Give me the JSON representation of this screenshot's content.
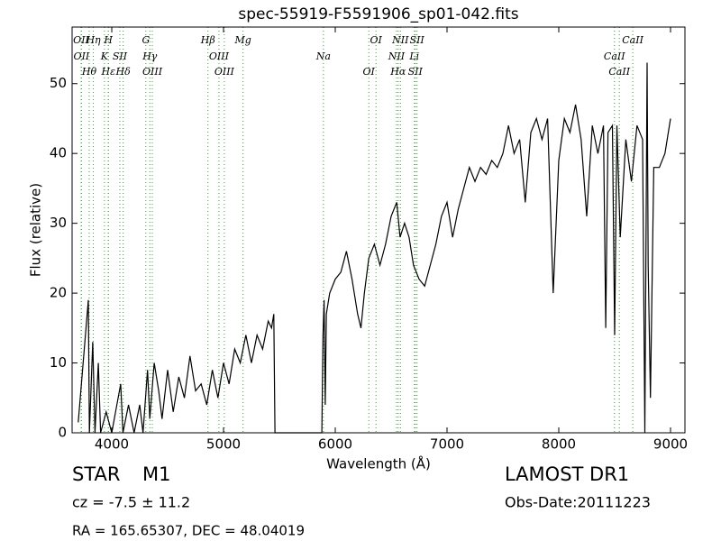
{
  "chart_data": {
    "type": "line",
    "title": "spec-55919-F5591906_sp01-042.fits",
    "x_label": "Wavelength (Å)",
    "y_label": "Flux (relative)",
    "color": "#000000",
    "line_color": "#3a9a3a",
    "xlim": [
      3645,
      9129
    ],
    "ylim": [
      0,
      58.1
    ],
    "xticks": [
      4000,
      5000,
      6000,
      7000,
      8000,
      9000
    ],
    "yticks": [
      0,
      10,
      20,
      30,
      40,
      50
    ],
    "x": [
      3700,
      3790,
      3800,
      3830,
      3850,
      3880,
      3900,
      3950,
      4000,
      4080,
      4100,
      4150,
      4200,
      4250,
      4280,
      4320,
      4340,
      4380,
      4420,
      4450,
      4500,
      4550,
      4600,
      4650,
      4700,
      4750,
      4800,
      4850,
      4900,
      4950,
      5000,
      5050,
      5100,
      5150,
      5200,
      5250,
      5300,
      5350,
      5400,
      5430,
      5450,
      5460,
      5800,
      5880,
      5890,
      5900,
      5910,
      5920,
      5950,
      6000,
      6050,
      6100,
      6150,
      6200,
      6230,
      6260,
      6300,
      6350,
      6400,
      6450,
      6500,
      6550,
      6580,
      6620,
      6660,
      6700,
      6750,
      6800,
      6850,
      6900,
      6950,
      7000,
      7050,
      7100,
      7150,
      7200,
      7250,
      7300,
      7350,
      7400,
      7450,
      7500,
      7550,
      7600,
      7650,
      7700,
      7750,
      7800,
      7850,
      7900,
      7950,
      8000,
      8050,
      8100,
      8150,
      8200,
      8250,
      8300,
      8350,
      8400,
      8420,
      8440,
      8480,
      8500,
      8520,
      8550,
      8600,
      8650,
      8700,
      8750,
      8770,
      8790,
      8800,
      8820,
      8850,
      8900,
      8950,
      9000
    ],
    "values": [
      1.5,
      19,
      0,
      13,
      0,
      10,
      0,
      3,
      0,
      7,
      0,
      4,
      0,
      4,
      0,
      9,
      2,
      10,
      6,
      2,
      9,
      3,
      8,
      5,
      11,
      6,
      7,
      4,
      9,
      5,
      10,
      7,
      12,
      10,
      14,
      10,
      14,
      12,
      16,
      15,
      17,
      0,
      0,
      0,
      14,
      19,
      4,
      17,
      20,
      22,
      23,
      26,
      22,
      17,
      15,
      20,
      25,
      27,
      24,
      27,
      31,
      33,
      28,
      30,
      28,
      24,
      22,
      21,
      24,
      27,
      31,
      33,
      28,
      32,
      35,
      38,
      36,
      38,
      37,
      39,
      38,
      40,
      44,
      40,
      42,
      33,
      43,
      45,
      42,
      45,
      20,
      39,
      45,
      43,
      47,
      42,
      31,
      44,
      40,
      44,
      15,
      43,
      44,
      14,
      44,
      28,
      42,
      36,
      44,
      42,
      0,
      53,
      24,
      5,
      38,
      38,
      40,
      45
    ],
    "lines": [
      {
        "label": "OII",
        "wavelength": 3726
      },
      {
        "label": "OII",
        "wavelength": 3729
      },
      {
        "label": "Hθ",
        "wavelength": 3798
      },
      {
        "label": "Hη",
        "wavelength": 3835
      },
      {
        "label": "K",
        "wavelength": 3934
      },
      {
        "label": "Hε",
        "wavelength": 3970
      },
      {
        "label": "H",
        "wavelength": 3969
      },
      {
        "label": "SII",
        "wavelength": 4072
      },
      {
        "label": "Hδ",
        "wavelength": 4102
      },
      {
        "label": "G",
        "wavelength": 4305
      },
      {
        "label": "Hγ",
        "wavelength": 4341
      },
      {
        "label": "OIII",
        "wavelength": 4363
      },
      {
        "label": "Hβ",
        "wavelength": 4861
      },
      {
        "label": "OIII",
        "wavelength": 4959
      },
      {
        "label": "OIII",
        "wavelength": 5007
      },
      {
        "label": "Mg",
        "wavelength": 5175
      },
      {
        "label": "Na",
        "wavelength": 5894
      },
      {
        "label": "OI",
        "wavelength": 6300
      },
      {
        "label": "OI",
        "wavelength": 6364
      },
      {
        "label": "NII",
        "wavelength": 6548
      },
      {
        "label": "Hα",
        "wavelength": 6563
      },
      {
        "label": "NII",
        "wavelength": 6583
      },
      {
        "label": "Li",
        "wavelength": 6708
      },
      {
        "label": "SII",
        "wavelength": 6716
      },
      {
        "label": "SII",
        "wavelength": 6731
      },
      {
        "label": "CaII",
        "wavelength": 8498
      },
      {
        "label": "CaII",
        "wavelength": 8542
      },
      {
        "label": "CaII",
        "wavelength": 8662
      }
    ],
    "class": "STAR",
    "subclass": "M1",
    "redshift": "cz = -7.5 ± 11.2",
    "survey": "LAMOST DR1",
    "obs_date": "Obs-Date:20111223",
    "coords": "RA = 165.65307, DEC = 48.04019"
  }
}
